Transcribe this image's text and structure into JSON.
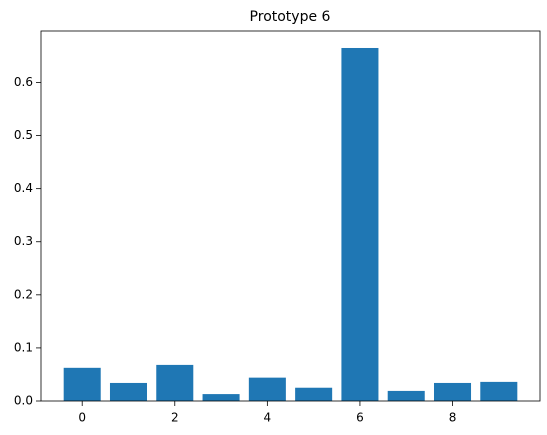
{
  "chart_data": {
    "type": "bar",
    "title": "Prototype 6",
    "x": [
      0,
      1,
      2,
      3,
      4,
      5,
      6,
      7,
      8,
      9
    ],
    "values": [
      0.0625,
      0.034,
      0.068,
      0.013,
      0.044,
      0.025,
      0.665,
      0.019,
      0.034,
      0.036
    ],
    "color": "#1f77b4",
    "xlim": [
      -0.89,
      9.89
    ],
    "xticks": [
      0,
      2,
      4,
      6,
      8
    ],
    "ylim": [
      0,
      0.697
    ],
    "yticks": [
      0.0,
      0.1,
      0.2,
      0.3,
      0.4,
      0.5,
      0.6
    ],
    "grid": false
  }
}
